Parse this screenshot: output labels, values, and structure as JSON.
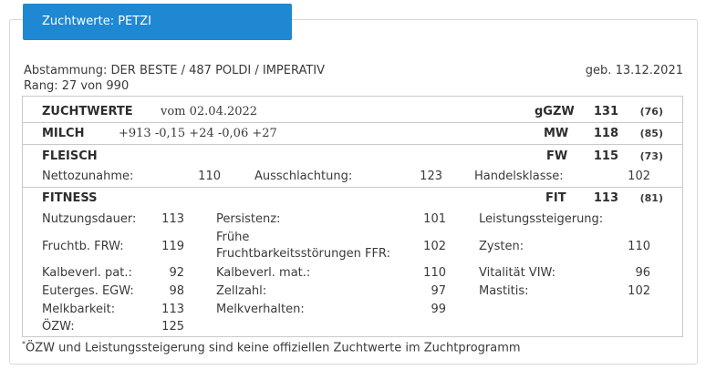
{
  "tab": {
    "title": "Zuchtwerte: PETZI"
  },
  "header": {
    "abstammung": "Abstammung: DER BESTE / 487 POLDI / IMPERATIV",
    "geb": "geb. 13.12.2021",
    "rang": "Rang: 27 von 990"
  },
  "zuchtwerte": {
    "label": "ZUCHTWERTE",
    "date": "vom 02.04.2022",
    "key": "gGZW",
    "value": "131",
    "acc": "(76)"
  },
  "milch": {
    "label": "MILCH",
    "values": "+913 -0,15 +24 -0,06 +27",
    "key": "MW",
    "value": "118",
    "acc": "(85)"
  },
  "fleisch": {
    "label": "FLEISCH",
    "key": "FW",
    "value": "115",
    "acc": "(73)",
    "items": [
      {
        "label": "Nettozunahme:",
        "value": "110"
      },
      {
        "label": "Ausschlachtung:",
        "value": "123"
      },
      {
        "label": "Handelsklasse:",
        "value": "102"
      }
    ]
  },
  "fitness": {
    "label": "FITNESS",
    "key": "FIT",
    "value": "113",
    "acc": "(81)",
    "col1": [
      {
        "label": "Nutzungsdauer:",
        "value": "113"
      },
      {
        "label": "Fruchtb. FRW:",
        "value": "119"
      },
      {
        "label": "Kalbeverl. pat.:",
        "value": "92"
      },
      {
        "label": "Euterges. EGW:",
        "value": "98"
      },
      {
        "label": "Melkbarkeit:",
        "value": "113"
      },
      {
        "label": "ÖZW:",
        "value": "125"
      }
    ],
    "col2": [
      {
        "label": "Persistenz:",
        "value": "101"
      },
      {
        "label_line1": "Frühe",
        "label_line2": "Fruchtbarkeitsstörungen FFR:",
        "value": "102"
      },
      {
        "label": "Kalbeverl. mat.:",
        "value": "110"
      },
      {
        "label": "Zellzahl:",
        "value": "97"
      },
      {
        "label": "Melkverhalten:",
        "value": "99"
      }
    ],
    "col3": [
      {
        "label": "Leistungssteigerung:",
        "value": ""
      },
      {
        "label": "Zysten:",
        "value": "110"
      },
      {
        "label": "Vitalität VIW:",
        "value": "96"
      },
      {
        "label": "Mastitis:",
        "value": "102"
      }
    ]
  },
  "footnote": {
    "star": "*",
    "text": "ÖZW und Leistungssteigerung sind keine offiziellen Zuchtwerte im Zuchtprogramm"
  }
}
